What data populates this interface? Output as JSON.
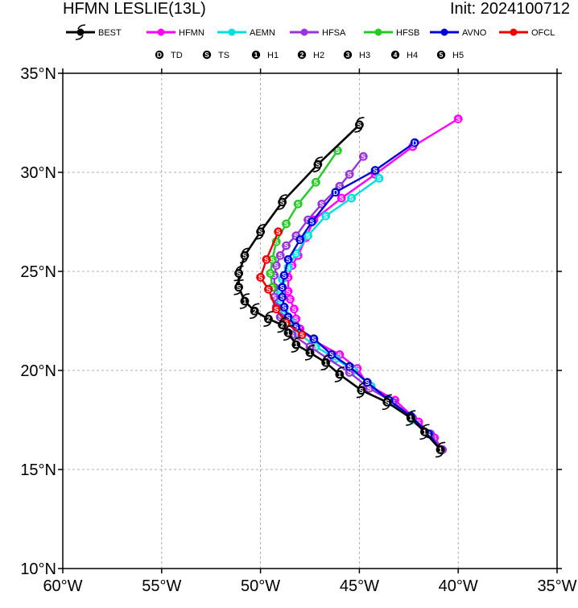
{
  "header": {
    "title": "HFMN LESLIE(13L)",
    "init": "Init: 2024100712"
  },
  "chart_data": {
    "type": "line",
    "xlim": [
      -60,
      -35
    ],
    "ylim": [
      10,
      35
    ],
    "x_ticks": [
      -60,
      -55,
      -50,
      -45,
      -40,
      -35
    ],
    "y_ticks": [
      10,
      15,
      20,
      25,
      30,
      35
    ],
    "x_tick_labels": [
      "60°W",
      "55°W",
      "50°W",
      "45°W",
      "40°W",
      "35°W"
    ],
    "y_tick_labels": [
      "10°N",
      "15°N",
      "20°N",
      "25°N",
      "30°N",
      "35°N"
    ],
    "grid": true,
    "legend_placement": "top",
    "intensity_legend": [
      {
        "symbol": "D",
        "label": "TD"
      },
      {
        "symbol": "S",
        "label": "TS"
      },
      {
        "symbol": "1",
        "label": "H1"
      },
      {
        "symbol": "2",
        "label": "H2"
      },
      {
        "symbol": "3",
        "label": "H3"
      },
      {
        "symbol": "4",
        "label": "H4"
      },
      {
        "symbol": "5",
        "label": "H5"
      }
    ],
    "series": [
      {
        "name": "BEST",
        "color": "#000000",
        "points": [
          [
            -40.9,
            16.0,
            "1"
          ],
          [
            -41.7,
            16.9,
            "1"
          ],
          [
            -42.4,
            17.6,
            "1"
          ],
          [
            -43.6,
            18.4,
            "S"
          ],
          [
            -44.9,
            19.0,
            "S"
          ],
          [
            -46.0,
            19.8,
            "1"
          ],
          [
            -46.7,
            20.4,
            "1"
          ],
          [
            -47.5,
            20.9,
            "1"
          ],
          [
            -48.2,
            21.3,
            "1"
          ],
          [
            -48.6,
            21.9,
            "1"
          ],
          [
            -48.9,
            22.3,
            "2"
          ],
          [
            -49.6,
            22.6,
            "2"
          ],
          [
            -50.3,
            23.0,
            "2"
          ],
          [
            -50.8,
            23.5,
            "1"
          ],
          [
            -51.1,
            24.2,
            "S"
          ],
          [
            -51.1,
            24.9,
            "S"
          ],
          [
            -50.8,
            25.8,
            "S"
          ],
          [
            -50.0,
            27.0,
            "S"
          ],
          [
            -48.9,
            28.5,
            "S"
          ],
          [
            -47.1,
            30.4,
            "S"
          ],
          [
            -45.0,
            32.4,
            "S"
          ]
        ]
      },
      {
        "name": "HFMN",
        "color": "#ff00ff",
        "points": [
          [
            -40.8,
            16.0,
            "S"
          ],
          [
            -41.2,
            16.6,
            "S"
          ],
          [
            -42.0,
            17.4,
            "S"
          ],
          [
            -43.2,
            18.5,
            "S"
          ],
          [
            -44.6,
            19.3,
            "S"
          ],
          [
            -45.1,
            20.1,
            "S"
          ],
          [
            -46.0,
            20.8,
            "S"
          ],
          [
            -47.3,
            21.5,
            "S"
          ],
          [
            -48.0,
            22.1,
            "S"
          ],
          [
            -48.2,
            22.6,
            "S"
          ],
          [
            -48.3,
            23.1,
            "S"
          ],
          [
            -48.5,
            23.6,
            "S"
          ],
          [
            -48.6,
            24.0,
            "S"
          ],
          [
            -48.6,
            24.7,
            "S"
          ],
          [
            -48.4,
            25.3,
            "S"
          ],
          [
            -48.1,
            25.8,
            "S"
          ],
          [
            -47.7,
            26.7,
            "S"
          ],
          [
            -47.3,
            27.6,
            "S"
          ],
          [
            -45.9,
            28.7,
            "S"
          ],
          [
            -44.2,
            29.9,
            "S"
          ],
          [
            -42.3,
            31.3,
            "S"
          ],
          [
            -40.0,
            32.7,
            "S"
          ]
        ]
      },
      {
        "name": "AEMN",
        "color": "#00e0e0",
        "points": [
          [
            -40.9,
            16.0,
            "S"
          ],
          [
            -41.5,
            16.8,
            "S"
          ],
          [
            -42.3,
            17.5,
            "S"
          ],
          [
            -43.4,
            18.4,
            "S"
          ],
          [
            -44.4,
            19.2,
            "S"
          ],
          [
            -45.3,
            20.0,
            "S"
          ],
          [
            -46.2,
            20.6,
            "S"
          ],
          [
            -47.2,
            21.2,
            "S"
          ],
          [
            -48.1,
            21.9,
            "S"
          ],
          [
            -48.5,
            22.5,
            "S"
          ],
          [
            -48.8,
            23.0,
            "S"
          ],
          [
            -49.0,
            23.5,
            "S"
          ],
          [
            -49.0,
            24.0,
            "S"
          ],
          [
            -48.9,
            24.6,
            "S"
          ],
          [
            -48.6,
            25.2,
            "S"
          ],
          [
            -48.2,
            25.9,
            "S"
          ],
          [
            -47.6,
            26.8,
            "S"
          ],
          [
            -46.7,
            27.8,
            "S"
          ],
          [
            -45.4,
            28.7,
            "S"
          ],
          [
            -44.0,
            29.7,
            "S"
          ]
        ]
      },
      {
        "name": "HFSA",
        "color": "#9933dd",
        "points": [
          [
            -40.8,
            16.0,
            "S"
          ],
          [
            -41.4,
            16.8,
            "S"
          ],
          [
            -42.3,
            17.6,
            "S"
          ],
          [
            -43.3,
            18.4,
            "S"
          ],
          [
            -44.5,
            19.1,
            "S"
          ],
          [
            -45.5,
            19.9,
            "S"
          ],
          [
            -46.6,
            20.6,
            "S"
          ],
          [
            -47.5,
            21.2,
            "S"
          ],
          [
            -48.4,
            21.8,
            "S"
          ],
          [
            -48.8,
            22.3,
            "S"
          ],
          [
            -49.0,
            22.7,
            "S"
          ],
          [
            -49.2,
            23.2,
            "S"
          ],
          [
            -49.3,
            23.7,
            "S"
          ],
          [
            -49.3,
            24.2,
            "S"
          ],
          [
            -49.3,
            24.8,
            "S"
          ],
          [
            -49.2,
            25.3,
            "S"
          ],
          [
            -49.0,
            25.8,
            "S"
          ],
          [
            -48.7,
            26.3,
            "S"
          ],
          [
            -48.2,
            26.8,
            "S"
          ],
          [
            -47.6,
            27.6,
            "S"
          ],
          [
            -46.9,
            28.4,
            "S"
          ],
          [
            -46.0,
            29.3,
            "S"
          ],
          [
            -45.5,
            29.9,
            "S"
          ],
          [
            -44.8,
            30.8,
            "S"
          ]
        ]
      },
      {
        "name": "HFSB",
        "color": "#22cc22",
        "points": [
          [
            -49.4,
            24.2,
            "S"
          ],
          [
            -49.5,
            24.9,
            "S"
          ],
          [
            -49.4,
            25.6,
            "S"
          ],
          [
            -49.2,
            26.5,
            "S"
          ],
          [
            -48.7,
            27.4,
            "S"
          ],
          [
            -48.1,
            28.4,
            "S"
          ],
          [
            -47.2,
            29.5,
            "S"
          ],
          [
            -46.1,
            31.1,
            "S"
          ]
        ]
      },
      {
        "name": "AVNO",
        "color": "#0000dd",
        "points": [
          [
            -40.9,
            16.0,
            "S"
          ],
          [
            -41.5,
            16.8,
            "S"
          ],
          [
            -42.4,
            17.7,
            "S"
          ],
          [
            -43.5,
            18.5,
            "S"
          ],
          [
            -44.6,
            19.4,
            "S"
          ],
          [
            -45.5,
            20.2,
            "S"
          ],
          [
            -46.4,
            20.8,
            "S"
          ],
          [
            -47.3,
            21.6,
            "S"
          ],
          [
            -48.2,
            22.2,
            "S"
          ],
          [
            -48.6,
            22.7,
            "S"
          ],
          [
            -48.8,
            23.2,
            "S"
          ],
          [
            -48.9,
            23.7,
            "S"
          ],
          [
            -48.9,
            24.2,
            "S"
          ],
          [
            -48.8,
            24.8,
            "S"
          ],
          [
            -48.6,
            25.6,
            "S"
          ],
          [
            -48.0,
            26.6,
            "S"
          ],
          [
            -47.4,
            27.5,
            "S"
          ],
          [
            -46.2,
            29.0,
            "D"
          ],
          [
            -44.2,
            30.1,
            "S"
          ],
          [
            -42.2,
            31.5,
            "D"
          ]
        ]
      },
      {
        "name": "OFCL",
        "color": "#ee0000",
        "points": [
          [
            -47.9,
            21.8,
            "S"
          ],
          [
            -48.7,
            22.4,
            "S"
          ],
          [
            -49.2,
            23.1,
            "S"
          ],
          [
            -49.6,
            24.1,
            "S"
          ],
          [
            -50.0,
            24.7,
            "S"
          ],
          [
            -49.7,
            25.6,
            "S"
          ],
          [
            -49.1,
            27.0,
            "S"
          ]
        ]
      }
    ]
  }
}
